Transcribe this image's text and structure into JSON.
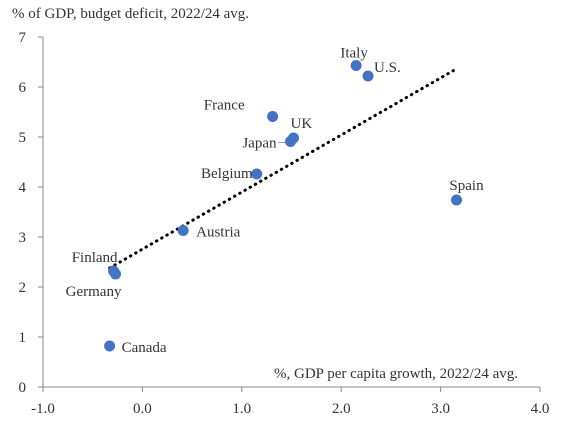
{
  "chart_data": {
    "type": "scatter",
    "title": "",
    "ylabel": "% of GDP, budget deficit, 2022/24 avg.",
    "xlabel": "%, GDP per capita growth, 2022/24 avg.",
    "xlim": [
      -1.0,
      4.0
    ],
    "ylim": [
      0,
      7
    ],
    "xticks": [
      "-1.0",
      "0.0",
      "1.0",
      "2.0",
      "3.0",
      "4.0"
    ],
    "yticks": [
      "0",
      "1",
      "2",
      "3",
      "4",
      "5",
      "6",
      "7"
    ],
    "grid": false,
    "legend": "none",
    "points": [
      {
        "label": "Italy",
        "x": 2.15,
        "y": 6.43
      },
      {
        "label": "U.S.",
        "x": 2.27,
        "y": 6.22
      },
      {
        "label": "France",
        "x": 1.31,
        "y": 5.41
      },
      {
        "label": "UK",
        "x": 1.52,
        "y": 4.98
      },
      {
        "label": "Japan",
        "x": 1.49,
        "y": 4.91
      },
      {
        "label": "Belgium",
        "x": 1.15,
        "y": 4.26
      },
      {
        "label": "Spain",
        "x": 3.16,
        "y": 3.74
      },
      {
        "label": "Austria",
        "x": 0.41,
        "y": 3.13
      },
      {
        "label": "Finland",
        "x": -0.29,
        "y": 2.32
      },
      {
        "label": "Germany",
        "x": -0.27,
        "y": 2.26
      },
      {
        "label": "Canada",
        "x": -0.33,
        "y": 0.82
      }
    ],
    "trendline": {
      "x": [
        -0.33,
        3.13
      ],
      "y": [
        2.38,
        6.33
      ],
      "style": "dotted"
    },
    "colors": {
      "points": "#4472C4",
      "trendline": "#000000",
      "axis": "#888888",
      "text": "#333333"
    }
  }
}
